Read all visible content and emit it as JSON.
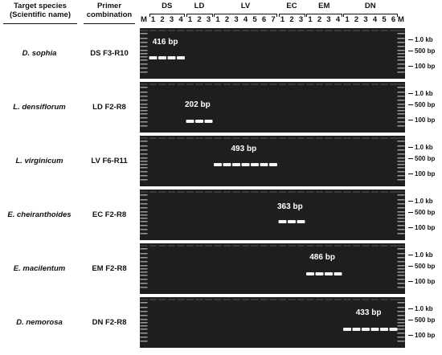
{
  "headers": {
    "species_line1": "Target species",
    "species_line2": "(Scientific name)",
    "primer_line1": "Primer",
    "primer_line2": "combination"
  },
  "lane_labels": [
    "M",
    "1",
    "2",
    "3",
    "4",
    "1",
    "2",
    "3",
    "1",
    "2",
    "3",
    "4",
    "5",
    "6",
    "7",
    "1",
    "2",
    "3",
    "1",
    "2",
    "3",
    "4",
    "1",
    "2",
    "3",
    "4",
    "5",
    "6",
    "M"
  ],
  "groups": [
    {
      "name": "DS",
      "lanes": 4
    },
    {
      "name": "LD",
      "lanes": 3
    },
    {
      "name": "LV",
      "lanes": 7
    },
    {
      "name": "EC",
      "lanes": 3
    },
    {
      "name": "EM",
      "lanes": 4
    },
    {
      "name": "DN",
      "lanes": 6
    }
  ],
  "marker_labels": [
    "1.0 kb",
    "500 bp",
    "100 bp"
  ],
  "rows": [
    {
      "species": "D. sophia",
      "primer": "DS F3-R10",
      "band": "416 bp",
      "group": 0
    },
    {
      "species": "L. densiflorum",
      "primer": "LD F2-R8",
      "band": "202 bp",
      "group": 1
    },
    {
      "species": "L. virginicum",
      "primer": "LV F6-R11",
      "band": "493 bp",
      "group": 2
    },
    {
      "species": "E. cheiranthoides",
      "primer": "EC F2-R8",
      "band": "363 bp",
      "group": 3
    },
    {
      "species": "E. macilentum",
      "primer": "EM F2-R8",
      "band": "486 bp",
      "group": 4
    },
    {
      "species": "D. nemorosa",
      "primer": "DN F2-R8",
      "band": "433 bp",
      "group": 5
    }
  ],
  "colors": {
    "gel_background": "#1e1e1e",
    "band": "#f4f4f4",
    "ladder": "#9a9a9a"
  }
}
